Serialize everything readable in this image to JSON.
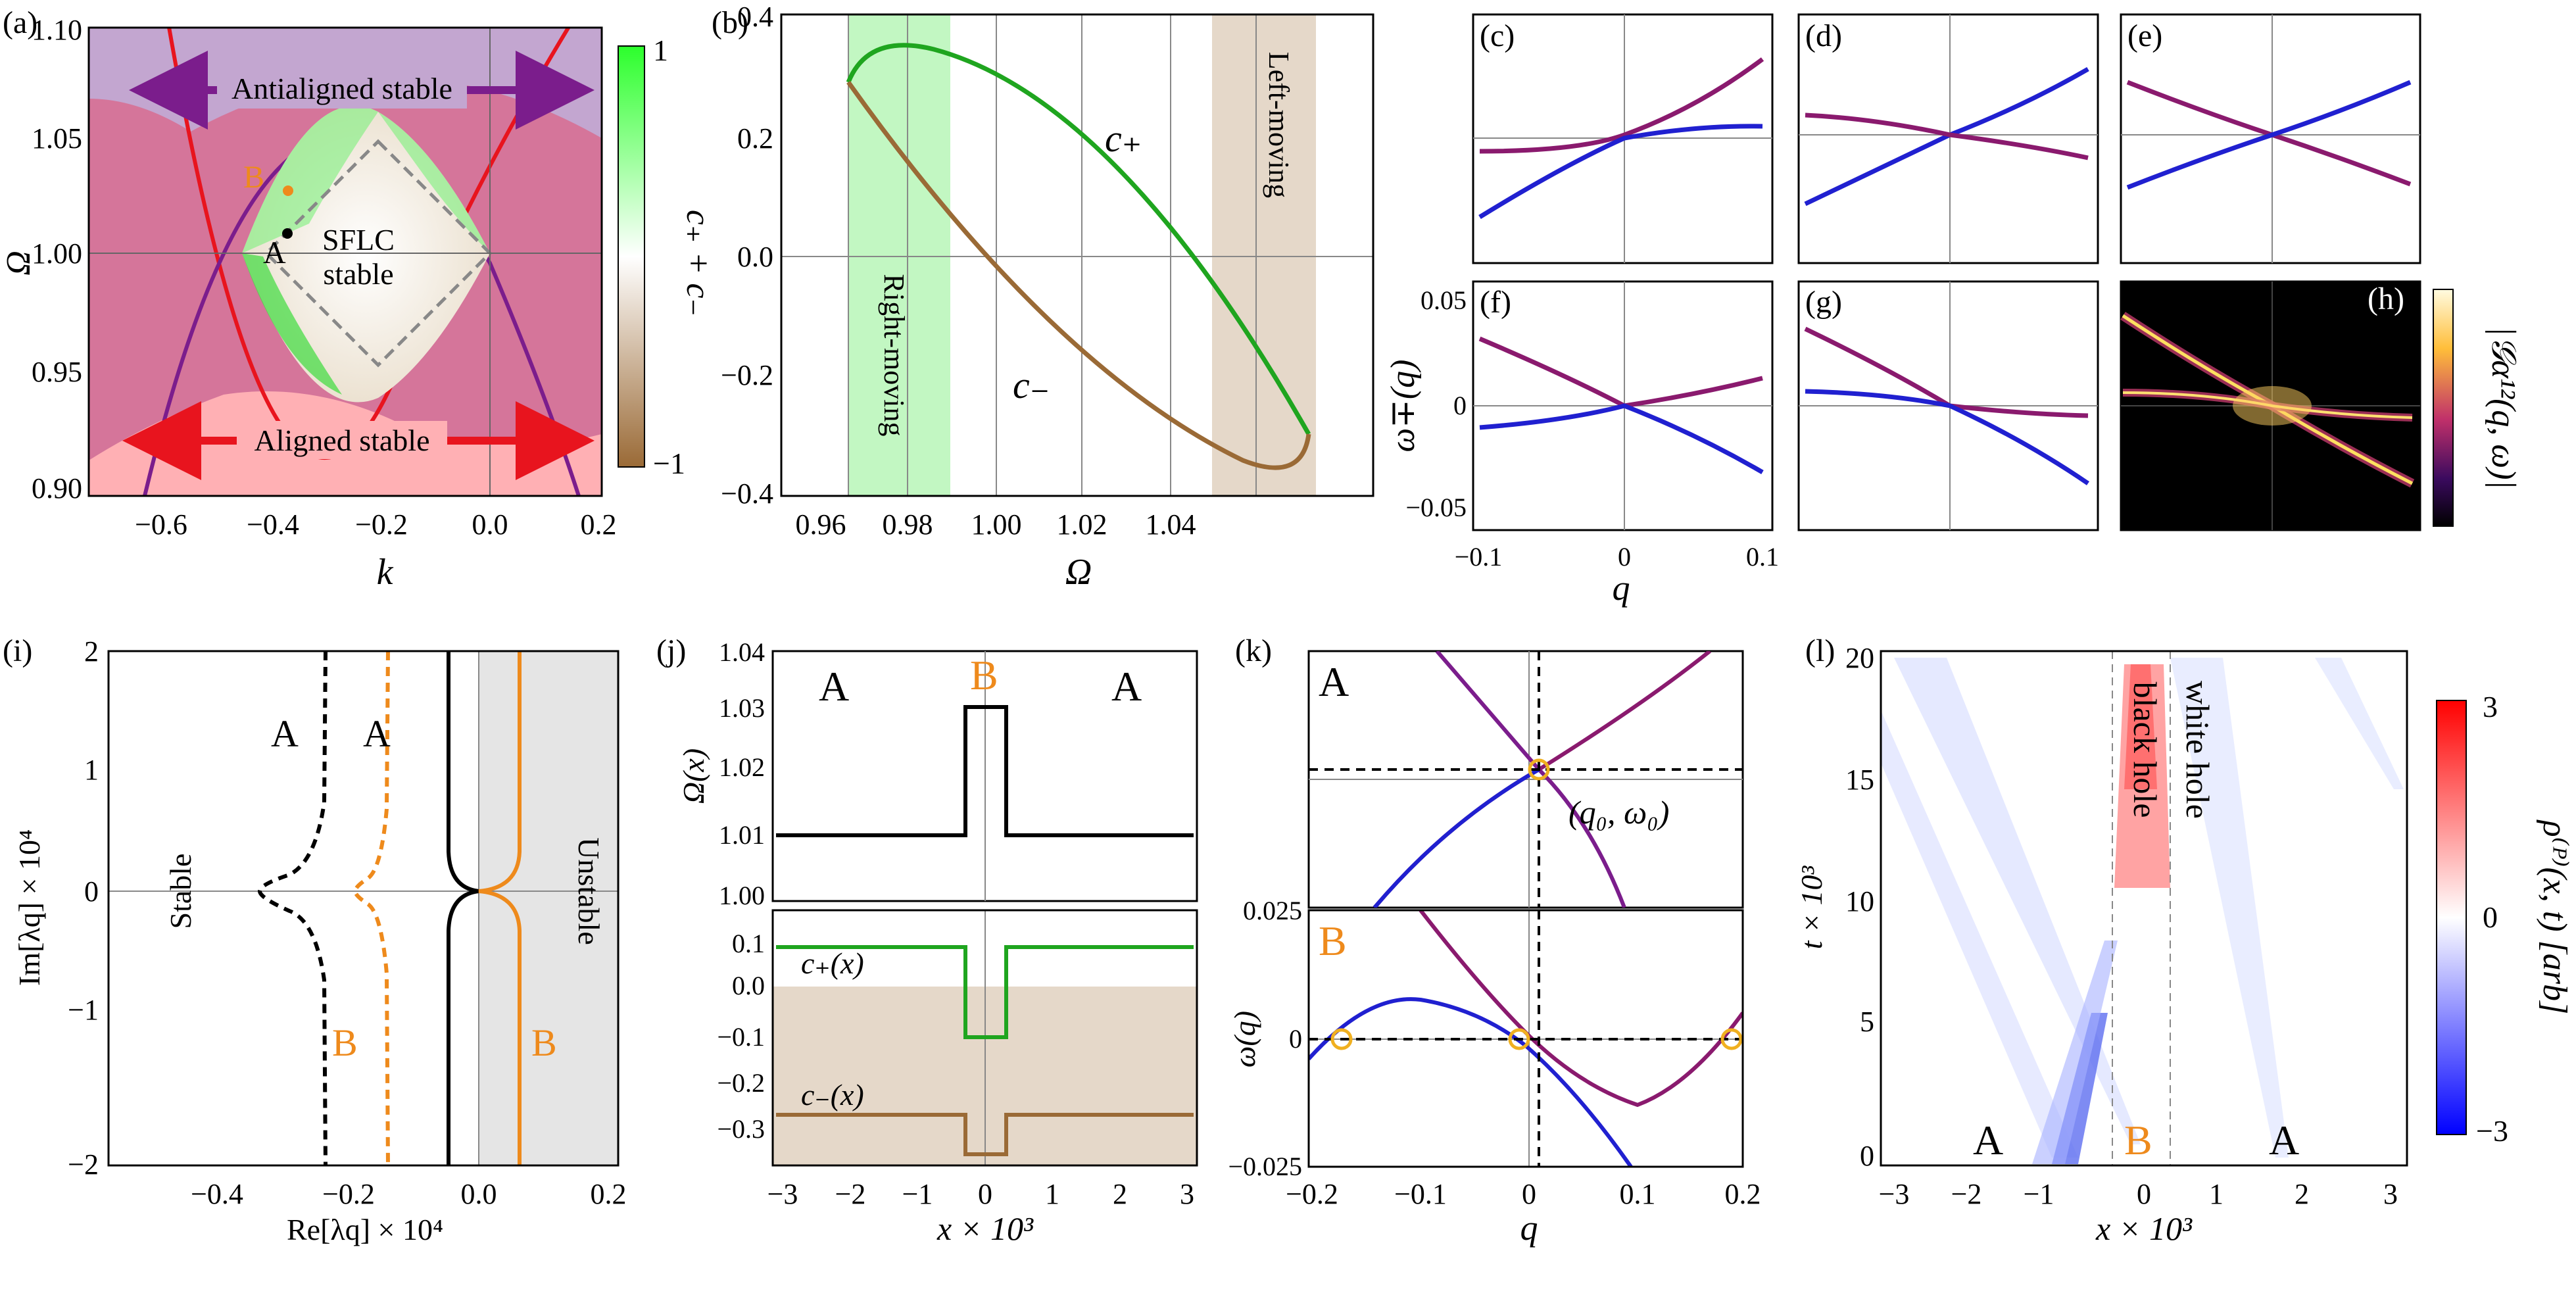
{
  "panels": {
    "a": {
      "label": "(a)",
      "ylabel": "Ω",
      "xlabel": "k",
      "yticks": [
        "0.90",
        "0.95",
        "1.00",
        "1.05",
        "1.10"
      ],
      "xticks": [
        "−0.6",
        "−0.4",
        "−0.2",
        "0.0",
        "0.2"
      ],
      "region_top": "Antialigned stable",
      "region_bottom": "Aligned stable",
      "region_mid_1": "SFLC",
      "region_mid_2": "stable",
      "point_a": "A",
      "point_b": "B",
      "colorbar_label": "c₊ + c₋",
      "colorbar_top": "1",
      "colorbar_bottom": "−1"
    },
    "b": {
      "label": "(b)",
      "xlabel": "Ω",
      "yticks": [
        "0.4",
        "0.2",
        "0.0",
        "−0.2",
        "−0.4"
      ],
      "xticks": [
        "0.96",
        "0.98",
        "1.00",
        "1.02",
        "1.04"
      ],
      "band_left": "Right-moving",
      "band_right": "Left-moving",
      "curve_top": "c₊",
      "curve_bottom": "c₋"
    },
    "grid": {
      "c": "(c)",
      "d": "(d)",
      "e": "(e)",
      "f": "(f)",
      "g": "(g)",
      "h": "(h)",
      "ylabel": "ω∓(q)",
      "yticks": [
        "0.05",
        "0",
        "−0.05"
      ],
      "xlabel": "q",
      "xticks": [
        "−0.1",
        "0",
        "0.1"
      ],
      "colorbar_label": "|𝒢α¹²(q, ω)|"
    },
    "i": {
      "label": "(i)",
      "ylabel": "Im[λq] × 10⁴",
      "xlabel": "Re[λq] × 10⁴",
      "yticks": [
        "2",
        "1",
        "0",
        "−1",
        "−2"
      ],
      "xticks": [
        "−0.4",
        "−0.2",
        "0.0",
        "0.2"
      ],
      "stable": "Stable",
      "unstable": "Unstable",
      "label_a1": "A",
      "label_a2": "A",
      "label_b1": "B",
      "label_b2": "B"
    },
    "j": {
      "label": "(j)",
      "ylabel": "Ω(x)",
      "xlabel": "x × 10³",
      "yticks_top": [
        "1.04",
        "1.03",
        "1.02",
        "1.01",
        "1.00"
      ],
      "yticks_bottom": [
        "0.1",
        "0.0",
        "−0.1",
        "−0.2",
        "−0.3"
      ],
      "xticks": [
        "−3",
        "−2",
        "−1",
        "0",
        "1",
        "2",
        "3"
      ],
      "region_left": "A",
      "region_mid": "B",
      "region_right": "A",
      "cplus": "c₊(x)",
      "cminus": "c₋(x)"
    },
    "k": {
      "label": "(k)",
      "ylabel": "ω(q)",
      "xlabel": "q",
      "yticks": [
        "0.025",
        "0",
        "−0.025"
      ],
      "xticks": [
        "−0.2",
        "−0.1",
        "0",
        "0.1",
        "0.2"
      ],
      "top_label": "A",
      "bottom_label": "B",
      "point_label": "(q₀, ω₀)"
    },
    "l": {
      "label": "(l)",
      "ylabel": "t × 10³",
      "xlabel": "x × 10³",
      "yticks": [
        "20",
        "15",
        "10",
        "5",
        "0"
      ],
      "xticks": [
        "−3",
        "−2",
        "−1",
        "0",
        "1",
        "2",
        "3"
      ],
      "black_hole": "black hole",
      "white_hole": "white hole",
      "label_a1": "A",
      "label_b": "B",
      "label_a2": "A",
      "colorbar_label": "ρ⁽ᴾ⁾(x, t) [arb]",
      "colorbar_top": "3",
      "colorbar_mid": "0",
      "colorbar_bottom": "−3"
    }
  },
  "colors": {
    "red": "#e8141e",
    "purple": "#7b1d8c",
    "green": "#1fa51f",
    "brown": "#9a6a36",
    "orange": "#ee8a1c",
    "blue": "#2020d0",
    "magenta": "#8a1a6e"
  }
}
